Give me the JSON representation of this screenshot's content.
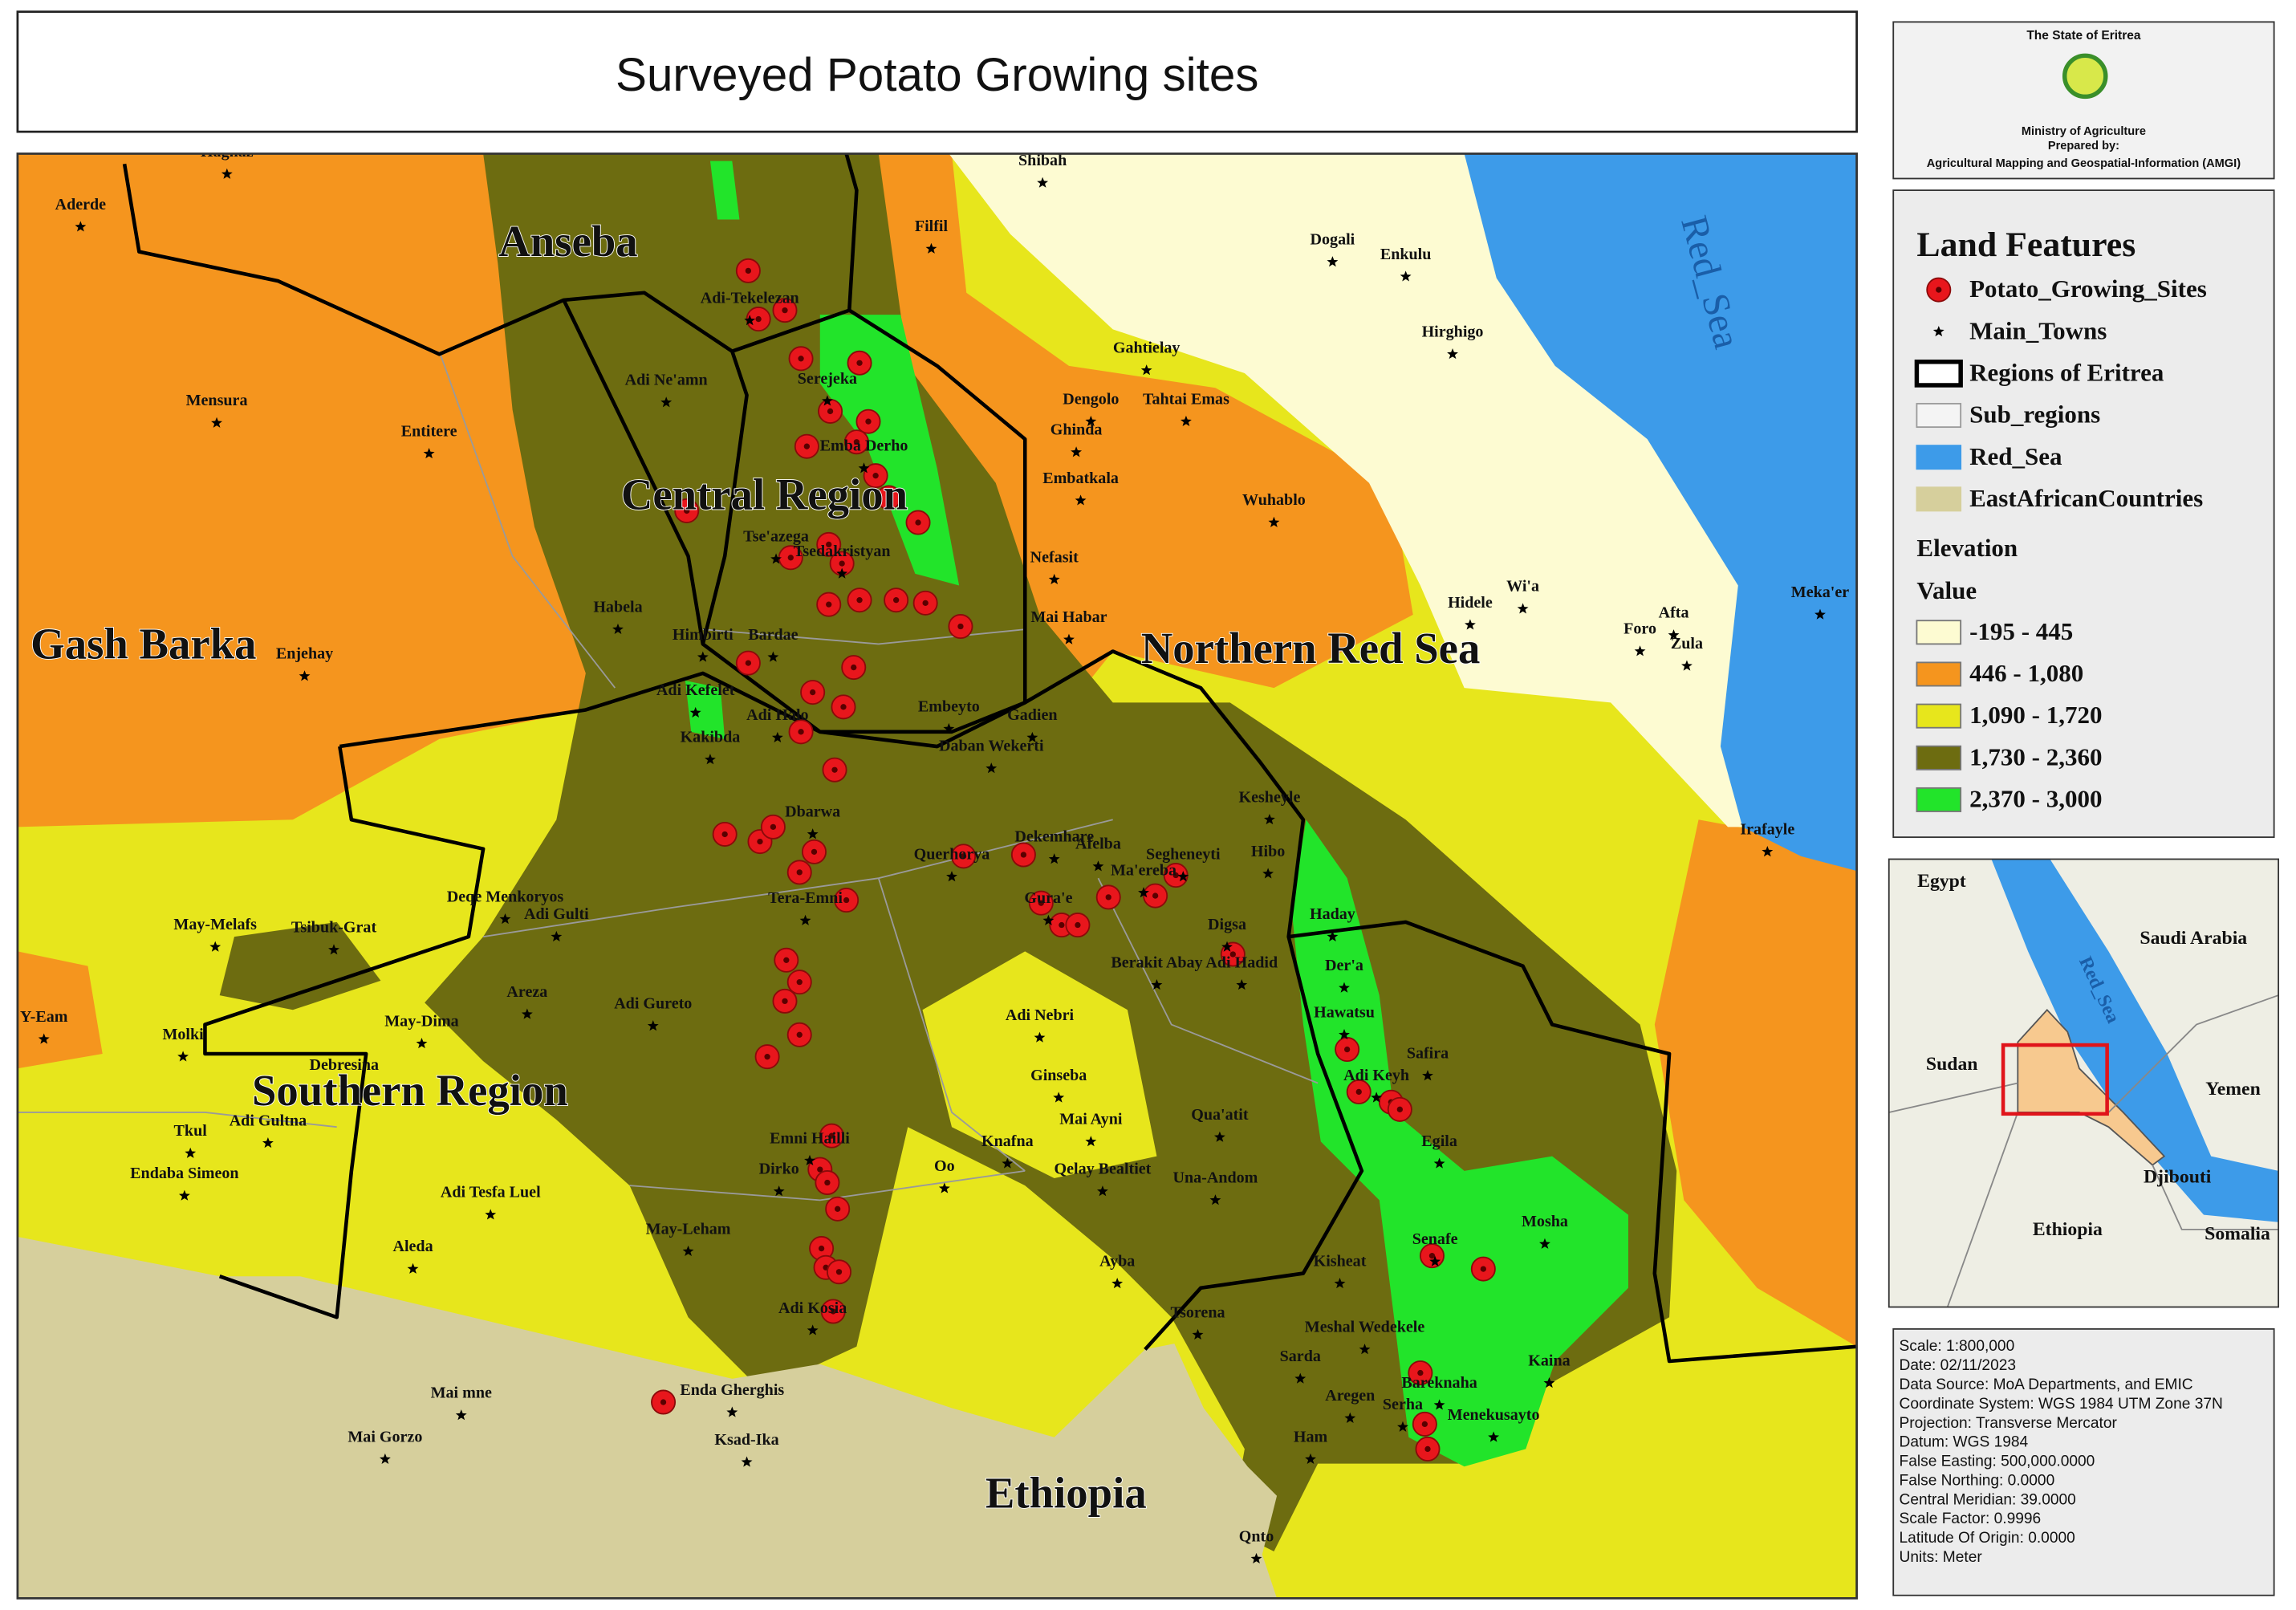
{
  "title": "Surveyed Potato Growing sites",
  "header": {
    "lines": [
      "The State of Eritrea",
      "Ministry of Agriculture",
      "Prepared by:",
      "Agricultural Mapping and Geospatial-Information (AMGI)"
    ]
  },
  "map": {
    "regions": [
      "Anseba",
      "Central Region",
      "Gash Barka",
      "Northern Red Sea",
      "Southern Region",
      "Ethiopia"
    ],
    "sea_label": "Red_Sea",
    "towns": [
      "Haghaz",
      "Aderde",
      "Shibah",
      "Filfil",
      "Dogali",
      "Enkulu",
      "Adi-Tekelezan",
      "Gahtielay",
      "Hirghigo",
      "Adi Ne'amn",
      "Serejeka",
      "Mensura",
      "Dengolo",
      "Tahtai Emas",
      "Ghinda",
      "Entitere",
      "Emba Derho",
      "Embatkala",
      "Wuhablo",
      "Tse'azega",
      "Tsedakristyan",
      "Nefasit",
      "Hidele",
      "Wi'a",
      "Afta",
      "Foro",
      "Zula",
      "Meka'er",
      "Habela",
      "Himbirti",
      "Bardae",
      "Mai Habar",
      "Enjehay",
      "Adi Kefelet",
      "Adi Halo",
      "Embeyto",
      "Gadien",
      "Kakibda",
      "Daban Wekerti",
      "Kesheyle",
      "Dbarwa",
      "Dekemhare",
      "Afelba",
      "Segheneyti",
      "Querhorya",
      "Hibo",
      "Ma'ereba",
      "Deqe Menkoryos",
      "Tera-Emni",
      "Adi Gulti",
      "Gura'e",
      "Irafayle",
      "May-Melafs",
      "Tsibuk-Grat",
      "Digsa",
      "Haday",
      "Berakit Abay",
      "Adi Hadid",
      "Der'a",
      "Areza",
      "Adi Gureto",
      "Hawatsu",
      "May-Dima",
      "Adi Nebri",
      "Molki",
      "Safira",
      "Debresina",
      "Adi Keyh",
      "Ginseba",
      "Adi Gultna",
      "Mai Ayni",
      "Qua'atit",
      "Tkul",
      "Emni Hailli",
      "Egila",
      "Oo",
      "Knafna",
      "Qelay Bealtiet",
      "Una-Andom",
      "Endaba Simeon",
      "Dirko",
      "Adi Tesfa Luel",
      "Mosha",
      "Aleda",
      "May-Leham",
      "Senafe",
      "Ayba",
      "Kisheat",
      "Adi Kosia",
      "Tsorena",
      "Meshal Wedekele",
      "Sarda",
      "Kaina",
      "Bareknaha",
      "Enda Gherghis",
      "Mai mne",
      "Aregen",
      "Serha",
      "Menekusayto",
      "Mai Gorzo",
      "Ham",
      "Ksad-Ika",
      "Qnto",
      "Y-Eam"
    ]
  },
  "legend": {
    "title": "Land Features",
    "items": [
      {
        "label": "Potato_Growing_Sites",
        "color": "#e8161c"
      },
      {
        "label": "Main_Towns",
        "color": "#000000"
      },
      {
        "label": "Regions of Eritrea",
        "color": "#000000"
      },
      {
        "label": "Sub_regions",
        "color": "#9a9a9a"
      },
      {
        "label": "Red_Sea",
        "color": "#3d9be9"
      },
      {
        "label": "EastAfricanCountries",
        "color": "#d6cf9c"
      }
    ],
    "elevation_title": "Elevation",
    "value_title": "Value",
    "classes": [
      {
        "label": "-195 - 445",
        "color": "#fdfbd2"
      },
      {
        "label": "446 - 1,080",
        "color": "#f5951e"
      },
      {
        "label": "1,090 - 1,720",
        "color": "#e7e61c"
      },
      {
        "label": "1,730 - 2,360",
        "color": "#6d6c10"
      },
      {
        "label": "2,370 - 3,000",
        "color": "#22e42a"
      }
    ]
  },
  "inset": {
    "labels": [
      "Egypt",
      "Saudi Arabia",
      "Red_Sea",
      "Sudan",
      "Yemen",
      "Djibouti",
      "Ethiopia",
      "Somalia"
    ]
  },
  "info": {
    "lines": [
      "Scale: 1:800,000",
      "Date: 02/11/2023",
      "Data Source: MoA Departments, and EMIC",
      "Coordinate System: WGS 1984 UTM Zone 37N",
      "Projection: Transverse Mercator",
      "Datum: WGS 1984",
      "False Easting: 500,000.0000",
      "False Northing: 0.0000",
      "Central Meridian: 39.0000",
      "Scale Factor: 0.9996",
      "Latitude Of Origin: 0.0000",
      "Units: Meter"
    ]
  }
}
